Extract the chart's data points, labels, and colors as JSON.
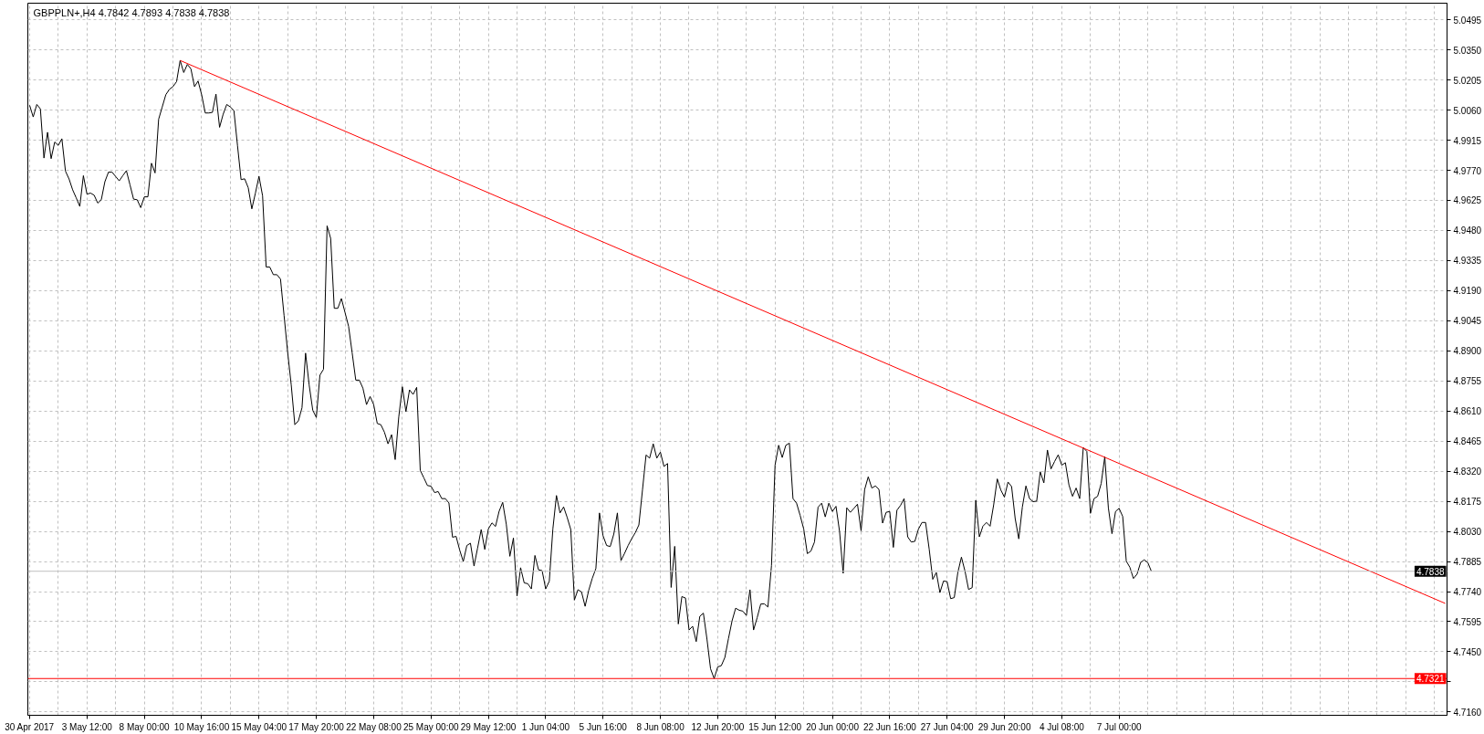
{
  "chart_data": {
    "type": "line",
    "title": "GBPPLN+,H4  4.7842 4.7893 4.7838 4.7838",
    "categories": [
      "30 Apr 2017",
      null,
      null,
      null,
      null,
      null,
      null,
      null,
      null,
      null,
      null,
      null,
      null,
      null,
      null,
      null,
      "3 May 12:00",
      null,
      null,
      null,
      null,
      null,
      null,
      null,
      null,
      null,
      null,
      null,
      null,
      null,
      null,
      null,
      "8 May 00:00",
      null,
      null,
      null,
      null,
      null,
      null,
      null,
      null,
      null,
      null,
      null,
      null,
      null,
      null,
      null,
      "10 May 16:00",
      null,
      null,
      null,
      null,
      null,
      null,
      null,
      null,
      null,
      null,
      null,
      null,
      null,
      null,
      null,
      "15 May 04:00",
      null,
      null,
      null,
      null,
      null,
      null,
      null,
      null,
      null,
      null,
      null,
      null,
      null,
      null,
      null,
      "17 May 20:00",
      null,
      null,
      null,
      null,
      null,
      null,
      null,
      null,
      null,
      null,
      null,
      null,
      null,
      null,
      null,
      "22 May 08:00",
      null,
      null,
      null,
      null,
      null,
      null,
      null,
      null,
      null,
      null,
      null,
      null,
      null,
      null,
      null,
      "25 May 00:00",
      null,
      null,
      null,
      null,
      null,
      null,
      null,
      null,
      null,
      null,
      null,
      null,
      null,
      null,
      null,
      "29 May 12:00",
      null,
      null,
      null,
      null,
      null,
      null,
      null,
      null,
      null,
      null,
      null,
      null,
      null,
      null,
      null,
      "1 Jun 04:00",
      null,
      null,
      null,
      null,
      null,
      null,
      null,
      null,
      null,
      null,
      null,
      null,
      null,
      null,
      null,
      "5 Jun 16:00",
      null,
      null,
      null,
      null,
      null,
      null,
      null,
      null,
      null,
      null,
      null,
      null,
      null,
      null,
      null,
      "8 Jun 08:00",
      null,
      null,
      null,
      null,
      null,
      null,
      null,
      null,
      null,
      null,
      null,
      null,
      null,
      null,
      null,
      "12 Jun 20:00",
      null,
      null,
      null,
      null,
      null,
      null,
      null,
      null,
      null,
      null,
      null,
      null,
      null,
      null,
      null,
      "15 Jun 12:00",
      null,
      null,
      null,
      null,
      null,
      null,
      null,
      null,
      null,
      null,
      null,
      null,
      null,
      null,
      null,
      "20 Jun 00:00",
      null,
      null,
      null,
      null,
      null,
      null,
      null,
      null,
      null,
      null,
      null,
      null,
      null,
      null,
      null,
      "22 Jun 16:00",
      null,
      null,
      null,
      null,
      null,
      null,
      null,
      null,
      null,
      null,
      null,
      null,
      null,
      null,
      null,
      "27 Jun 04:00",
      null,
      null,
      null,
      null,
      null,
      null,
      null,
      null,
      null,
      null,
      null,
      null,
      null,
      null,
      null,
      "29 Jun 20:00",
      null,
      null,
      null,
      null,
      null,
      null,
      null,
      null,
      null,
      null,
      null,
      null,
      null,
      null,
      null,
      "4 Jul 08:00",
      null,
      null,
      null,
      null,
      null,
      null,
      null,
      null,
      null,
      null,
      null,
      null,
      null,
      null,
      null,
      "7 Jul 00:00",
      null,
      null,
      null,
      null,
      null,
      null,
      null,
      null,
      null,
      null,
      null,
      null,
      null,
      null,
      null,
      null,
      null,
      null,
      null,
      null,
      null,
      null,
      null,
      null,
      null,
      null,
      null,
      null,
      null,
      null,
      null,
      null,
      null,
      null,
      null,
      null,
      null,
      null,
      null,
      null,
      null,
      null,
      null,
      null,
      null,
      null,
      null,
      null,
      null,
      null,
      null,
      null,
      null,
      null,
      null,
      null,
      null,
      null,
      null,
      null,
      null,
      null,
      null,
      null,
      null,
      null,
      null,
      null,
      null,
      null,
      null,
      null,
      null,
      null,
      null,
      null,
      null,
      null,
      null,
      null,
      null,
      null,
      null,
      null,
      null,
      null,
      null,
      null,
      null,
      null,
      null
    ],
    "ylim": [
      4.7144,
      5.0575
    ],
    "yticks": [
      5.0495,
      {
        "value": 5.035,
        "label": "5.0350"
      },
      5.0205,
      {
        "value": 5.006,
        "label": "5.0060"
      },
      4.9915,
      {
        "value": 4.977,
        "label": "4.9770"
      },
      4.9625,
      {
        "value": 4.948,
        "label": "4.9480"
      },
      4.9335,
      {
        "value": 4.919,
        "label": "4.9190"
      },
      4.9045,
      {
        "value": 4.89,
        "label": "4.8900"
      },
      4.8755,
      {
        "value": 4.861,
        "label": "4.8610"
      },
      4.8465,
      {
        "value": 4.832,
        "label": "4.8320"
      },
      4.8175,
      {
        "value": 4.803,
        "label": "4.8030"
      },
      4.7885,
      {
        "value": 4.774,
        "label": "4.7740"
      },
      4.7595,
      {
        "value": 4.745,
        "label": "4.7450"
      },
      {
        "value": 4.7305,
        "label": null
      },
      {
        "value": 4.716,
        "label": "4.7160"
      }
    ],
    "grid": true,
    "ref_lines": [
      {
        "axis": "y",
        "value": 4.7838,
        "label": "4.7838",
        "color": "#c0c0c0"
      },
      {
        "axis": "y",
        "value": 4.7321,
        "label": "4.7321",
        "color": "#ff0000"
      }
    ],
    "series": [
      {
        "color": "#000000",
        "values": [
          5.0083,
          5.0027,
          5.0087,
          5.0066,
          4.9829,
          4.9953,
          4.9826,
          4.9906,
          4.989,
          4.9922,
          4.9766,
          4.9728,
          4.9676,
          4.9637,
          4.9596,
          4.9744,
          4.9655,
          4.966,
          4.965,
          4.9612,
          4.9628,
          4.9715,
          4.9761,
          4.9761,
          4.974,
          4.9719,
          4.9744,
          4.9768,
          4.97,
          4.9631,
          4.9628,
          4.959,
          4.9642,
          4.9642,
          4.9804,
          4.9757,
          5.0016,
          5.0075,
          5.0134,
          5.016,
          5.0173,
          5.0197,
          5.0299,
          5.0241,
          5.028,
          5.0259,
          5.0173,
          5.02,
          5.0134,
          5.0046,
          5.0046,
          5.0049,
          5.0137,
          4.9977,
          5.004,
          5.0087,
          5.0075,
          5.0058,
          4.989,
          4.9725,
          4.9729,
          4.9686,
          4.9584,
          4.966,
          4.9741,
          4.9647,
          4.9304,
          4.9304,
          4.9267,
          4.9267,
          4.9246,
          4.907,
          4.8893,
          4.8735,
          4.8544,
          4.8563,
          4.8626,
          4.8889,
          4.8735,
          4.8614,
          4.8579,
          4.8783,
          4.8811,
          4.9502,
          4.9442,
          4.9105,
          4.9105,
          4.9152,
          4.9085,
          4.9018,
          4.889,
          4.8759,
          4.8759,
          4.872,
          4.8641,
          4.868,
          4.8641,
          4.855,
          4.8544,
          4.8508,
          4.8452,
          4.8496,
          4.8376,
          4.8581,
          4.8727,
          4.8607,
          4.8712,
          4.869,
          4.8724,
          4.8324,
          4.8288,
          4.8251,
          4.8248,
          4.8217,
          4.8222,
          4.8188,
          4.8188,
          4.8167,
          4.8002,
          4.8006,
          4.794,
          4.7885,
          4.7962,
          4.7973,
          4.7863,
          4.795,
          4.8039,
          4.7943,
          4.8042,
          4.8071,
          4.8054,
          4.8127,
          4.817,
          4.8065,
          4.791,
          4.7998,
          4.7719,
          4.7855,
          4.7782,
          4.7778,
          4.7753,
          4.7914,
          4.7845,
          4.7841,
          4.7753,
          4.779,
          4.8042,
          4.8203,
          4.8119,
          4.8148,
          4.8097,
          4.8039,
          4.7699,
          4.7749,
          4.7738,
          4.7669,
          4.7746,
          4.7804,
          4.7851,
          4.8119,
          4.8009,
          4.7962,
          4.7957,
          4.8017,
          4.8119,
          4.7889,
          4.7924,
          4.7962,
          4.7995,
          4.8024,
          4.8061,
          4.8229,
          4.8398,
          4.8383,
          4.8452,
          4.8383,
          4.8412,
          4.8343,
          4.8357,
          4.776,
          4.7958,
          4.7584,
          4.7716,
          4.7709,
          4.7555,
          4.7573,
          4.7499,
          4.7621,
          4.7636,
          4.7511,
          4.7368,
          4.7321,
          4.7377,
          4.7383,
          4.7423,
          4.7514,
          4.7599,
          4.766,
          4.765,
          4.7646,
          4.7625,
          4.7749,
          4.7555,
          4.7614,
          4.768,
          4.7681,
          4.7666,
          4.7865,
          4.8349,
          4.8445,
          4.8386,
          4.8445,
          4.8455,
          4.8188,
          4.8166,
          4.8107,
          4.8041,
          4.7923,
          4.7935,
          4.7979,
          4.8147,
          4.8166,
          4.81,
          4.8166,
          4.8126,
          4.8151,
          4.8029,
          4.7828,
          4.8144,
          4.8122,
          4.8141,
          4.8161,
          4.8033,
          4.8232,
          4.8293,
          4.8239,
          4.8249,
          4.8232,
          4.807,
          4.8122,
          4.8126,
          4.7953,
          4.8132,
          4.8155,
          4.8188,
          4.8004,
          4.7979,
          4.7982,
          4.8041,
          4.8073,
          4.8073,
          4.7945,
          4.7799,
          4.7832,
          4.7735,
          4.7791,
          4.7788,
          4.7706,
          4.7711,
          4.7832,
          4.7906,
          4.7838,
          4.775,
          4.7759,
          4.818,
          4.8004,
          4.8055,
          4.8073,
          4.8055,
          4.8158,
          4.8283,
          4.8229,
          4.8195,
          4.8268,
          4.8246,
          4.8092,
          4.7994,
          4.8147,
          4.8249,
          4.8188,
          4.8173,
          4.8176,
          4.8317,
          4.8264,
          4.8422,
          4.8331,
          4.8367,
          4.8399,
          4.8349,
          4.8361,
          4.8254,
          4.8199,
          4.8239,
          4.8188,
          4.8434,
          4.8415,
          4.8117,
          4.8188,
          4.8199,
          4.8261,
          4.839,
          4.8144,
          4.8019,
          4.8126,
          4.8141,
          4.8102,
          4.7887,
          4.7857,
          4.7803,
          4.7824,
          4.788,
          4.7893,
          4.788,
          4.7838,
          null,
          null,
          null,
          null,
          null,
          null,
          null,
          null,
          null,
          null,
          null,
          null,
          null,
          null,
          null,
          null,
          null,
          null,
          null,
          null,
          null,
          null,
          null,
          null,
          null,
          null,
          null,
          null,
          null,
          null,
          null,
          null,
          null,
          null,
          null,
          null,
          null,
          null,
          null,
          null,
          null,
          null,
          null,
          null,
          null,
          null,
          null,
          null,
          null,
          null,
          null,
          null,
          null,
          null,
          null,
          null,
          null,
          null,
          null,
          null,
          null,
          null,
          null,
          null,
          null,
          null,
          null,
          null,
          null,
          null,
          null,
          null,
          null,
          null,
          null,
          null,
          null,
          null,
          null,
          null,
          null,
          null
        ]
      },
      {
        "type": "line",
        "color": "#ff0000",
        "values": [
          null,
          null,
          null,
          null,
          null,
          null,
          null,
          null,
          null,
          null,
          null,
          null,
          null,
          null,
          null,
          null,
          null,
          null,
          null,
          null,
          null,
          null,
          null,
          null,
          null,
          null,
          null,
          null,
          null,
          null,
          null,
          null,
          null,
          null,
          null,
          null,
          null,
          null,
          null,
          null,
          null,
          null,
          5.0299,
          null,
          null,
          null,
          null,
          null,
          null,
          null,
          null,
          null,
          null,
          null,
          null,
          null,
          null,
          null,
          null,
          null,
          null,
          null,
          null,
          null,
          null,
          null,
          null,
          null,
          null,
          null,
          null,
          null,
          null,
          null,
          null,
          null,
          null,
          null,
          null,
          null,
          null,
          null,
          null,
          null,
          null,
          null,
          null,
          null,
          null,
          null,
          null,
          null,
          null,
          null,
          null,
          null,
          null,
          null,
          null,
          null,
          null,
          null,
          null,
          null,
          null,
          null,
          null,
          null,
          null,
          null,
          null,
          null,
          null,
          null,
          null,
          null,
          null,
          null,
          null,
          null,
          null,
          null,
          null,
          null,
          null,
          null,
          null,
          null,
          null,
          null,
          null,
          null,
          null,
          null,
          null,
          null,
          null,
          null,
          null,
          null,
          null,
          null,
          null,
          null,
          null,
          null,
          null,
          null,
          null,
          null,
          null,
          null,
          null,
          null,
          null,
          null,
          null,
          null,
          null,
          null,
          null,
          null,
          null,
          null,
          null,
          null,
          null,
          null,
          null,
          null,
          null,
          null,
          null,
          null,
          null,
          null,
          null,
          null,
          null,
          null,
          null,
          null,
          null,
          null,
          null,
          null,
          null,
          null,
          null,
          null,
          null,
          null,
          null,
          null,
          null,
          null,
          null,
          null,
          null,
          null,
          null,
          null,
          null,
          null,
          null,
          null,
          null,
          null,
          null,
          null,
          null,
          null,
          null,
          null,
          null,
          null,
          null,
          null,
          null,
          null,
          null,
          null,
          null,
          null,
          null,
          null,
          null,
          null,
          null,
          null,
          null,
          null,
          null,
          null,
          null,
          null,
          null,
          null,
          null,
          null,
          null,
          null,
          null,
          null,
          null,
          null,
          null,
          null,
          null,
          null,
          null,
          null,
          null,
          null,
          null,
          null,
          null,
          null,
          null,
          null,
          null,
          null,
          null,
          null,
          null,
          null,
          null,
          null,
          null,
          null,
          null,
          null,
          null,
          null,
          null,
          null,
          null,
          null,
          null,
          null,
          null,
          null,
          null,
          null,
          null,
          null,
          null,
          null,
          null,
          null,
          null,
          null,
          null,
          null,
          null,
          null,
          null,
          null,
          null,
          null,
          null,
          null,
          null,
          null,
          null,
          null,
          null,
          null,
          null,
          null,
          null,
          null,
          null,
          null,
          null,
          null,
          null,
          null,
          null,
          null,
          null,
          null,
          null,
          null,
          null,
          null,
          null,
          null,
          null,
          null,
          null,
          null,
          null,
          null,
          null,
          null,
          null,
          null,
          null,
          null,
          null,
          null,
          null,
          null,
          null,
          null,
          null,
          null,
          null,
          null,
          null,
          null,
          null,
          null,
          null,
          null,
          null,
          null,
          null,
          null,
          null,
          null,
          null,
          null,
          null,
          null,
          null,
          null,
          null,
          null,
          null,
          null,
          null,
          null,
          null,
          null,
          null,
          null,
          null,
          null,
          null,
          null,
          null,
          null,
          null,
          null,
          null,
          null,
          null,
          null,
          null,
          null,
          null,
          null,
          null,
          4.7683
        ]
      }
    ]
  }
}
